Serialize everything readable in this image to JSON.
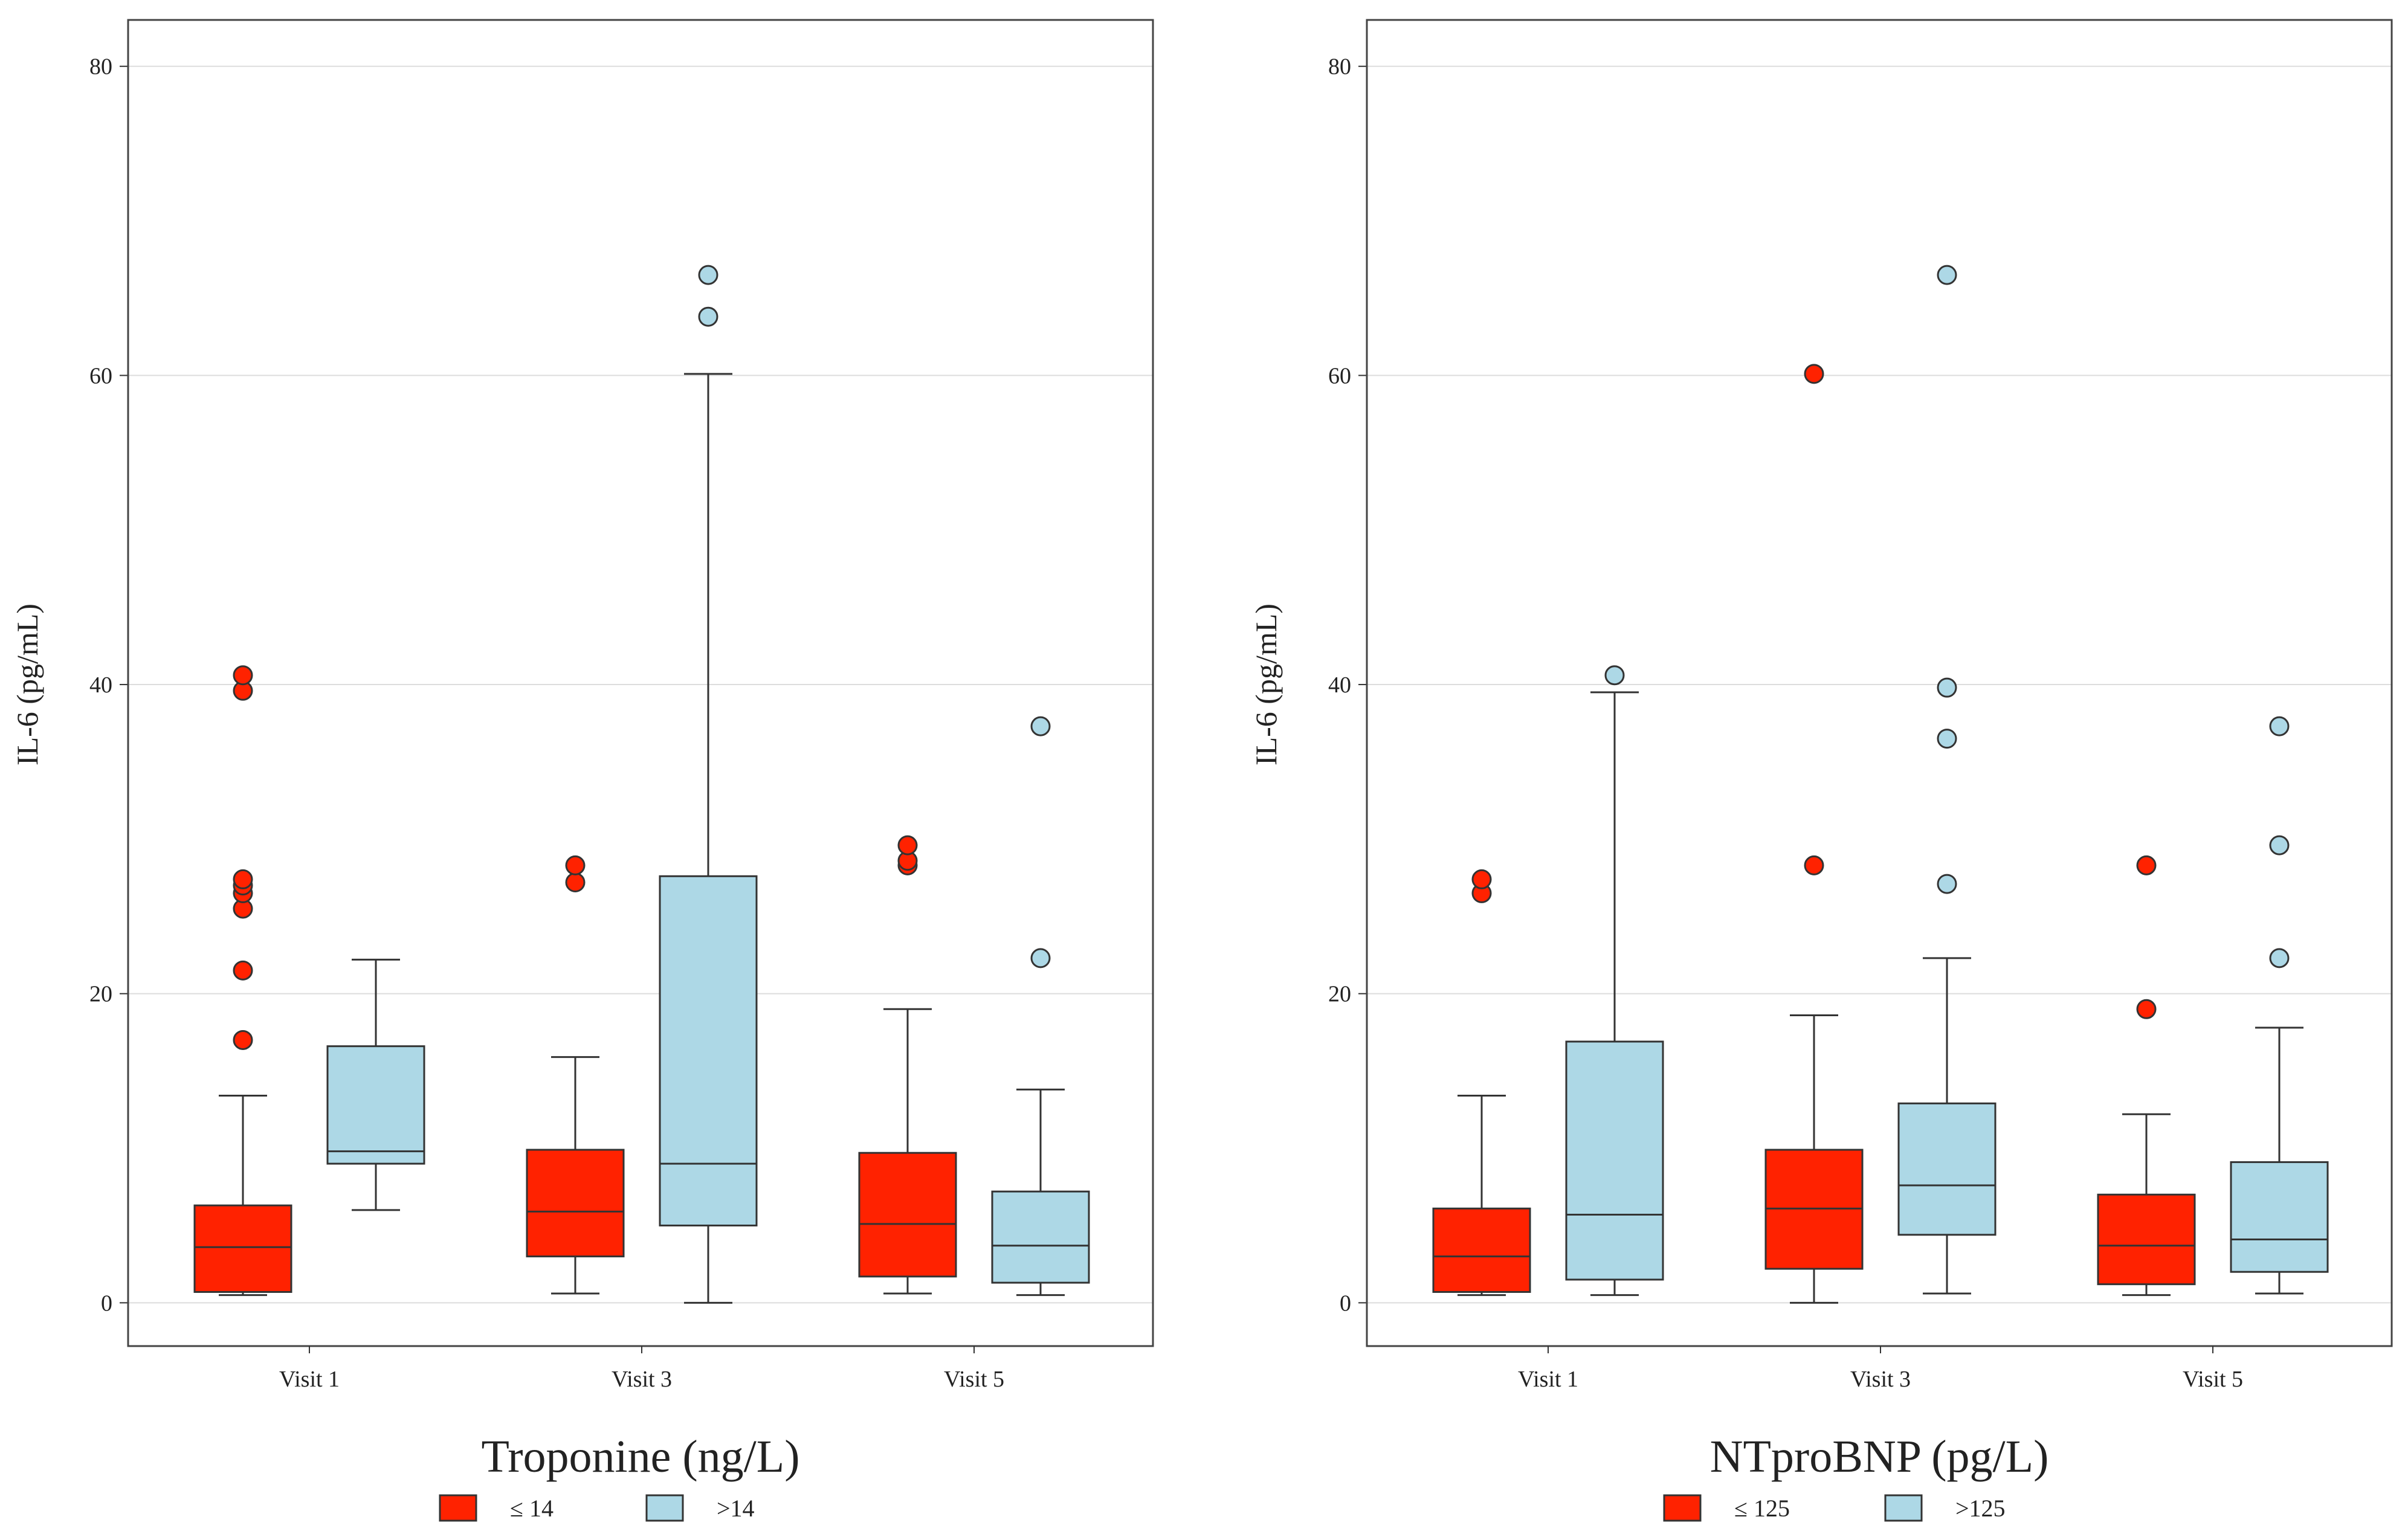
{
  "chart_data": [
    {
      "type": "boxplot",
      "title": "Troponine (ng/L)",
      "xlabel": "Troponine (ng/L)",
      "ylabel": "IL-6 (pg/mL)",
      "ylim": [
        -2.8,
        83
      ],
      "yticks": [
        0,
        20,
        40,
        60,
        80
      ],
      "grid": true,
      "categories": [
        "Visit 1",
        "Visit 3",
        "Visit 5"
      ],
      "legend_position": "bottom",
      "series": [
        {
          "name": "≤ 14",
          "color": "#ff2200",
          "boxes": [
            {
              "whisker_low": 0.5,
              "q1": 0.7,
              "median": 3.6,
              "q3": 6.3,
              "whisker_high": 13.4,
              "outliers": [
                17.0,
                21.5,
                25.5,
                26.5,
                27.0,
                27.4,
                39.6,
                40.6
              ]
            },
            {
              "whisker_low": 0.6,
              "q1": 3.0,
              "median": 5.9,
              "q3": 9.9,
              "whisker_high": 15.9,
              "outliers": [
                27.2,
                28.3
              ]
            },
            {
              "whisker_low": 0.6,
              "q1": 1.7,
              "median": 5.1,
              "q3": 9.7,
              "whisker_high": 19.0,
              "outliers": [
                28.3,
                28.6,
                29.6
              ]
            }
          ]
        },
        {
          "name": ">14",
          "color": "#add8e6",
          "boxes": [
            {
              "whisker_low": 6.0,
              "q1": 9.0,
              "median": 9.8,
              "q3": 16.6,
              "whisker_high": 22.2,
              "outliers": []
            },
            {
              "whisker_low": 0.0,
              "q1": 5.0,
              "median": 9.0,
              "q3": 27.6,
              "whisker_high": 60.1,
              "outliers": [
                63.8,
                66.5
              ]
            },
            {
              "whisker_low": 0.5,
              "q1": 1.3,
              "median": 3.7,
              "q3": 7.2,
              "whisker_high": 13.8,
              "outliers": [
                22.3,
                37.3
              ]
            }
          ]
        }
      ]
    },
    {
      "type": "boxplot",
      "title": "NTproBNP (pg/L)",
      "xlabel": "NTproBNP (pg/L)",
      "ylabel": "IL-6 (pg/mL)",
      "ylim": [
        -2.8,
        83
      ],
      "yticks": [
        0,
        20,
        40,
        60,
        80
      ],
      "grid": true,
      "categories": [
        "Visit 1",
        "Visit 3",
        "Visit 5"
      ],
      "legend_position": "bottom",
      "series": [
        {
          "name": "≤ 125",
          "color": "#ff2200",
          "boxes": [
            {
              "whisker_low": 0.5,
              "q1": 0.7,
              "median": 3.0,
              "q3": 6.1,
              "whisker_high": 13.4,
              "outliers": [
                26.5,
                27.4
              ]
            },
            {
              "whisker_low": 0.0,
              "q1": 2.2,
              "median": 6.1,
              "q3": 9.9,
              "whisker_high": 18.6,
              "outliers": [
                28.3,
                60.1
              ]
            },
            {
              "whisker_low": 0.5,
              "q1": 1.2,
              "median": 3.7,
              "q3": 7.0,
              "whisker_high": 12.2,
              "outliers": [
                19.0,
                28.3
              ]
            }
          ]
        },
        {
          "name": ">125",
          "color": "#add8e6",
          "boxes": [
            {
              "whisker_low": 0.5,
              "q1": 1.5,
              "median": 5.7,
              "q3": 16.9,
              "whisker_high": 39.5,
              "outliers": [
                40.6
              ]
            },
            {
              "whisker_low": 0.6,
              "q1": 4.4,
              "median": 7.6,
              "q3": 12.9,
              "whisker_high": 22.3,
              "outliers": [
                27.1,
                36.5,
                39.8,
                66.5
              ]
            },
            {
              "whisker_low": 0.6,
              "q1": 2.0,
              "median": 4.1,
              "q3": 9.1,
              "whisker_high": 17.8,
              "outliers": [
                22.3,
                29.6,
                37.3
              ]
            }
          ]
        }
      ]
    }
  ]
}
